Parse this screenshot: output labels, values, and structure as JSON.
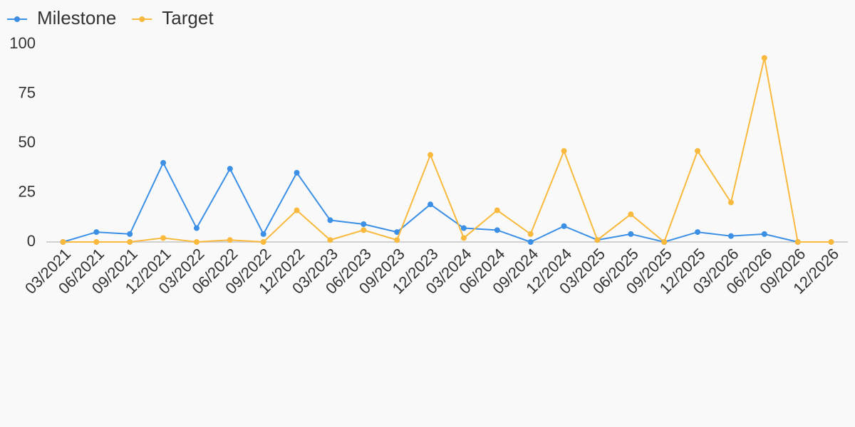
{
  "chart_data": {
    "type": "line",
    "categories": [
      "03/2021",
      "06/2021",
      "09/2021",
      "12/2021",
      "03/2022",
      "06/2022",
      "09/2022",
      "12/2022",
      "03/2023",
      "06/2023",
      "09/2023",
      "12/2023",
      "03/2024",
      "06/2024",
      "09/2024",
      "12/2024",
      "03/2025",
      "06/2025",
      "09/2025",
      "12/2025",
      "03/2026",
      "06/2026",
      "09/2026",
      "12/2026"
    ],
    "series": [
      {
        "name": "Milestone",
        "color": "#3b8fe5",
        "values": [
          0,
          5,
          4,
          40,
          7,
          37,
          4,
          35,
          11,
          9,
          5,
          19,
          7,
          6,
          0,
          8,
          1,
          4,
          0,
          5,
          3,
          4,
          0,
          null
        ]
      },
      {
        "name": "Target",
        "color": "#f8b93c",
        "values": [
          0,
          0,
          0,
          2,
          0,
          1,
          0,
          16,
          1,
          6,
          1,
          44,
          2,
          16,
          4,
          46,
          1,
          14,
          0,
          46,
          20,
          93,
          0,
          0
        ]
      }
    ],
    "ylim": [
      0,
      100
    ],
    "yticks": [
      0,
      25,
      50,
      75,
      100
    ],
    "grid": false,
    "legend": "top-left"
  }
}
